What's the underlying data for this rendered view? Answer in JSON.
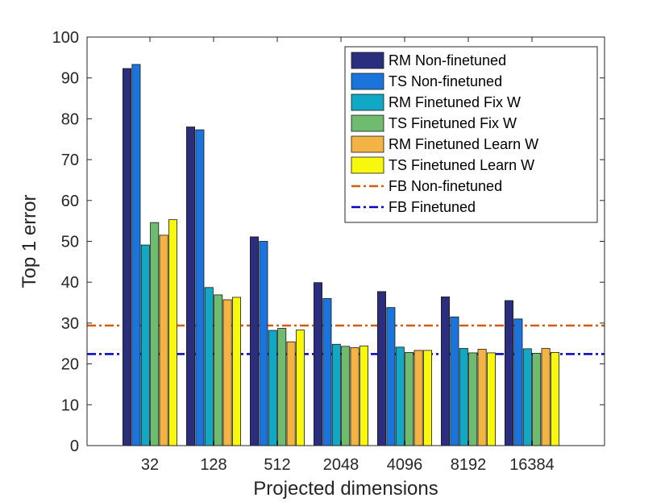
{
  "chart_data": {
    "type": "bar",
    "title": "",
    "xlabel": "Projected dimensions",
    "ylabel": "Top 1 error",
    "ylim": [
      0,
      100
    ],
    "yticks": [
      0,
      10,
      20,
      30,
      40,
      50,
      60,
      70,
      80,
      90,
      100
    ],
    "categories": [
      "32",
      "128",
      "512",
      "2048",
      "4096",
      "8192",
      "16384"
    ],
    "series": [
      {
        "name": "RM Non-finetuned",
        "color": "#2b2e7c",
        "values": [
          92.3,
          78.0,
          51.1,
          39.9,
          37.7,
          36.4,
          35.5
        ]
      },
      {
        "name": "TS Non-finetuned",
        "color": "#1a74db",
        "values": [
          93.3,
          77.3,
          50.0,
          36.0,
          33.8,
          31.5,
          31.0
        ]
      },
      {
        "name": "RM Finetuned Fix W",
        "color": "#10a8c4",
        "values": [
          49.1,
          38.7,
          28.2,
          24.8,
          24.1,
          23.8,
          23.7
        ]
      },
      {
        "name": "TS Finetuned Fix W",
        "color": "#6fbb6f",
        "values": [
          54.6,
          36.9,
          28.7,
          24.3,
          22.8,
          22.7,
          22.6
        ]
      },
      {
        "name": "RM Finetuned Learn W",
        "color": "#f4b445",
        "values": [
          51.5,
          35.7,
          25.4,
          24.0,
          23.3,
          23.6,
          23.8
        ]
      },
      {
        "name": "TS Finetuned Learn W",
        "color": "#f8f80f",
        "values": [
          55.3,
          36.3,
          28.3,
          24.4,
          23.3,
          22.7,
          22.8
        ]
      }
    ],
    "reference_lines": [
      {
        "name": "FB Non-finetuned",
        "value": 29.4,
        "color": "#d45a10",
        "style": "dash-dot"
      },
      {
        "name": "FB Finetuned",
        "value": 22.4,
        "color": "#0000c8",
        "style": "dash-dot"
      }
    ],
    "legend": {
      "position": "top-right"
    },
    "grid": false
  }
}
